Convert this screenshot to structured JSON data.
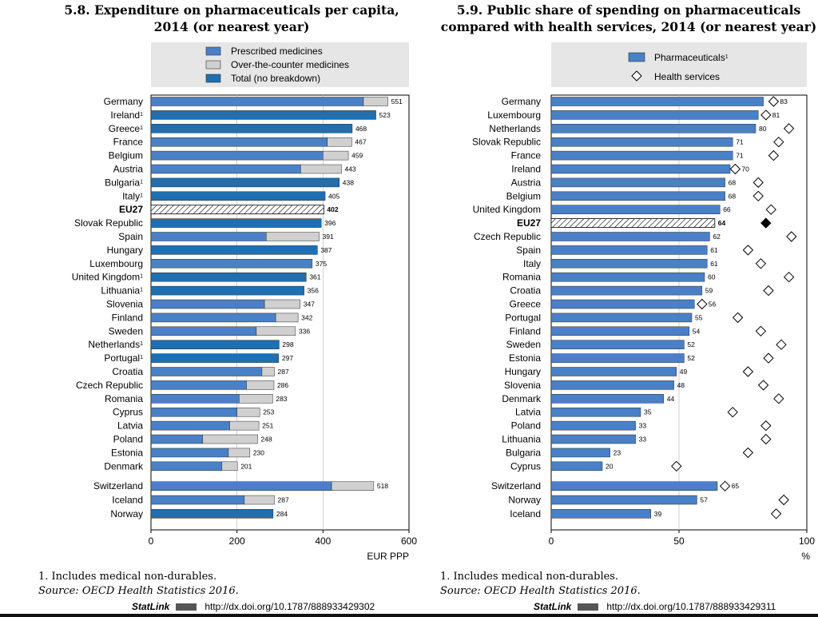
{
  "chart_data": [
    {
      "type": "bar",
      "title_number": "5.8.",
      "title": "Expenditure on pharmaceuticals per capita, 2014 (or nearest year)",
      "title_line1": "5.8.  Expenditure on pharmaceuticals per capita,",
      "title_line2": "2014 (or nearest year)",
      "xlabel": "EUR PPP",
      "xlim": [
        0,
        600
      ],
      "ticks": [
        "0",
        "200",
        "400",
        "600"
      ],
      "legend": [
        "Prescribed medicines",
        "Over-the-counter medicines",
        "Total (no breakdown)"
      ],
      "colors": {
        "prescribed": "#4a80c6",
        "otc": "#d0d0d0",
        "total": "#1f6fb1"
      },
      "rows": [
        {
          "label": "Germany",
          "sup": "",
          "prescribed": 494,
          "otc": 57,
          "total": 551,
          "kind": "split",
          "text": "551"
        },
        {
          "label": "Ireland",
          "sup": "1",
          "prescribed": 0,
          "otc": 0,
          "total": 523,
          "kind": "total",
          "text": "523"
        },
        {
          "label": "Greece",
          "sup": "1",
          "prescribed": 0,
          "otc": 0,
          "total": 468,
          "kind": "total",
          "text": "468"
        },
        {
          "label": "France",
          "sup": "",
          "prescribed": 410,
          "otc": 57,
          "total": 467,
          "kind": "split",
          "text": "467"
        },
        {
          "label": "Belgium",
          "sup": "",
          "prescribed": 400,
          "otc": 59,
          "total": 459,
          "kind": "split",
          "text": "459"
        },
        {
          "label": "Austria",
          "sup": "",
          "prescribed": 348,
          "otc": 95,
          "total": 443,
          "kind": "split",
          "text": "443"
        },
        {
          "label": "Bulgaria",
          "sup": "1",
          "prescribed": 0,
          "otc": 0,
          "total": 438,
          "kind": "total",
          "text": "438"
        },
        {
          "label": "Italy",
          "sup": "1",
          "prescribed": 0,
          "otc": 0,
          "total": 405,
          "kind": "total",
          "text": "405"
        },
        {
          "label": "EU27",
          "sup": "",
          "prescribed": 0,
          "otc": 0,
          "total": 402,
          "kind": "eu",
          "text": "402"
        },
        {
          "label": "Slovak Republic",
          "sup": "",
          "prescribed": 0,
          "otc": 0,
          "total": 396,
          "kind": "total",
          "text": "396"
        },
        {
          "label": "Spain",
          "sup": "",
          "prescribed": 268,
          "otc": 123,
          "total": 391,
          "kind": "split",
          "text": "391"
        },
        {
          "label": "Hungary",
          "sup": "",
          "prescribed": 0,
          "otc": 0,
          "total": 387,
          "kind": "total",
          "text": "387"
        },
        {
          "label": "Luxembourg",
          "sup": "",
          "prescribed": 375,
          "otc": 0,
          "total": 375,
          "kind": "split",
          "text": "375"
        },
        {
          "label": "United Kingdom",
          "sup": "1",
          "prescribed": 0,
          "otc": 0,
          "total": 361,
          "kind": "total",
          "text": "361"
        },
        {
          "label": "Lithuania",
          "sup": "1",
          "prescribed": 0,
          "otc": 0,
          "total": 356,
          "kind": "total",
          "text": "356"
        },
        {
          "label": "Slovenia",
          "sup": "",
          "prescribed": 264,
          "otc": 83,
          "total": 347,
          "kind": "split",
          "text": "347"
        },
        {
          "label": "Finland",
          "sup": "",
          "prescribed": 290,
          "otc": 52,
          "total": 342,
          "kind": "split",
          "text": "342"
        },
        {
          "label": "Sweden",
          "sup": "",
          "prescribed": 245,
          "otc": 91,
          "total": 336,
          "kind": "split",
          "text": "336"
        },
        {
          "label": "Netherlands",
          "sup": "1",
          "prescribed": 0,
          "otc": 0,
          "total": 298,
          "kind": "total",
          "text": "298"
        },
        {
          "label": "Portugal",
          "sup": "1",
          "prescribed": 0,
          "otc": 0,
          "total": 297,
          "kind": "total",
          "text": "297"
        },
        {
          "label": "Croatia",
          "sup": "",
          "prescribed": 258,
          "otc": 29,
          "total": 287,
          "kind": "split",
          "text": "287"
        },
        {
          "label": "Czech Republic",
          "sup": "",
          "prescribed": 222,
          "otc": 64,
          "total": 286,
          "kind": "split",
          "text": "286"
        },
        {
          "label": "Romania",
          "sup": "",
          "prescribed": 205,
          "otc": 78,
          "total": 283,
          "kind": "split",
          "text": "283"
        },
        {
          "label": "Cyprus",
          "sup": "",
          "prescribed": 200,
          "otc": 53,
          "total": 253,
          "kind": "split",
          "text": "253"
        },
        {
          "label": "Latvia",
          "sup": "",
          "prescribed": 183,
          "otc": 68,
          "total": 251,
          "kind": "split",
          "text": "251"
        },
        {
          "label": "Poland",
          "sup": "",
          "prescribed": 120,
          "otc": 128,
          "total": 248,
          "kind": "split",
          "text": "248"
        },
        {
          "label": "Estonia",
          "sup": "",
          "prescribed": 180,
          "otc": 50,
          "total": 230,
          "kind": "split",
          "text": "230"
        },
        {
          "label": "Denmark",
          "sup": "",
          "prescribed": 165,
          "otc": 36,
          "total": 201,
          "kind": "split",
          "text": "201"
        },
        {
          "label": "Switzerland",
          "sup": "",
          "prescribed": 420,
          "otc": 98,
          "total": 518,
          "kind": "split",
          "text": "518"
        },
        {
          "label": "Iceland",
          "sup": "",
          "prescribed": 217,
          "otc": 70,
          "total": 287,
          "kind": "split",
          "text": "287"
        },
        {
          "label": "Norway",
          "sup": "",
          "prescribed": 0,
          "otc": 0,
          "total": 284,
          "kind": "total",
          "text": "284"
        }
      ]
    },
    {
      "type": "bar",
      "title_number": "5.9.",
      "title": "Public share of spending on pharmaceuticals compared with health services, 2014 (or nearest year)",
      "title_line1": "5.9.  Public share of spending on pharmaceuticals",
      "title_line2": "compared with health services, 2014 (or nearest year)",
      "xlabel": "%",
      "xlim": [
        0,
        100
      ],
      "ticks": [
        "0",
        "50",
        "100"
      ],
      "legend": [
        "Pharmaceuticals",
        "Health services"
      ],
      "legend_sup": "1",
      "colors": {
        "pharma": "#4a80c6",
        "diamond": "#ffffff"
      },
      "rows": [
        {
          "label": "Germany",
          "value": 83,
          "health": 87,
          "kind": "bar",
          "text": "83"
        },
        {
          "label": "Luxembourg",
          "value": 81,
          "health": 84,
          "kind": "bar",
          "text": "81"
        },
        {
          "label": "Netherlands",
          "value": 80,
          "health": 93,
          "kind": "bar",
          "text": "80"
        },
        {
          "label": "Slovak Republic",
          "value": 71,
          "health": 89,
          "kind": "bar",
          "text": "71"
        },
        {
          "label": "France",
          "value": 71,
          "health": 87,
          "kind": "bar",
          "text": "71"
        },
        {
          "label": "Ireland",
          "value": 70,
          "health": 72,
          "kind": "bar",
          "text": "70"
        },
        {
          "label": "Austria",
          "value": 68,
          "health": 81,
          "kind": "bar",
          "text": "68"
        },
        {
          "label": "Belgium",
          "value": 68,
          "health": 81,
          "kind": "bar",
          "text": "68"
        },
        {
          "label": "United Kingdom",
          "value": 66,
          "health": 86,
          "kind": "bar",
          "text": "66"
        },
        {
          "label": "EU27",
          "value": 64,
          "health": 84,
          "kind": "eu",
          "text": "64"
        },
        {
          "label": "Czech Republic",
          "value": 62,
          "health": 94,
          "kind": "bar",
          "text": "62"
        },
        {
          "label": "Spain",
          "value": 61,
          "health": 77,
          "kind": "bar",
          "text": "61"
        },
        {
          "label": "Italy",
          "value": 61,
          "health": 82,
          "kind": "bar",
          "text": "61"
        },
        {
          "label": "Romania",
          "value": 60,
          "health": 93,
          "kind": "bar",
          "text": "60"
        },
        {
          "label": "Croatia",
          "value": 59,
          "health": 85,
          "kind": "bar",
          "text": "59"
        },
        {
          "label": "Greece",
          "value": 56,
          "health": 59,
          "kind": "bar",
          "text": "56"
        },
        {
          "label": "Portugal",
          "value": 55,
          "health": 73,
          "kind": "bar",
          "text": "55"
        },
        {
          "label": "Finland",
          "value": 54,
          "health": 82,
          "kind": "bar",
          "text": "54"
        },
        {
          "label": "Sweden",
          "value": 52,
          "health": 90,
          "kind": "bar",
          "text": "52"
        },
        {
          "label": "Estonia",
          "value": 52,
          "health": 85,
          "kind": "bar",
          "text": "52"
        },
        {
          "label": "Hungary",
          "value": 49,
          "health": 77,
          "kind": "bar",
          "text": "49"
        },
        {
          "label": "Slovenia",
          "value": 48,
          "health": 83,
          "kind": "bar",
          "text": "48"
        },
        {
          "label": "Denmark",
          "value": 44,
          "health": 89,
          "kind": "bar",
          "text": "44"
        },
        {
          "label": "Latvia",
          "value": 35,
          "health": 71,
          "kind": "bar",
          "text": "35"
        },
        {
          "label": "Poland",
          "value": 33,
          "health": 84,
          "kind": "bar",
          "text": "33"
        },
        {
          "label": "Lithuania",
          "value": 33,
          "health": 84,
          "kind": "bar",
          "text": "33"
        },
        {
          "label": "Bulgaria",
          "value": 23,
          "health": 77,
          "kind": "bar",
          "text": "23"
        },
        {
          "label": "Cyprus",
          "value": 20,
          "health": 49,
          "kind": "bar",
          "text": "20"
        },
        {
          "label": "Switzerland",
          "value": 65,
          "health": 68,
          "kind": "bar",
          "text": "65"
        },
        {
          "label": "Norway",
          "value": 57,
          "health": 91,
          "kind": "bar",
          "text": "57"
        },
        {
          "label": "Iceland",
          "value": 39,
          "health": 88,
          "kind": "bar",
          "text": "39"
        }
      ]
    }
  ],
  "footnotes": {
    "left": {
      "note": "1.  Includes medical non-durables.",
      "source_label": "Source:",
      "source_text": "  OECD Health Statistics 2016.",
      "statlink_label": "StatLink",
      "url": "http://dx.doi.org/10.1787/888933429302"
    },
    "right": {
      "note": "1.  Includes medical non-durables.",
      "source_label": "Source:",
      "source_text": "  OECD Health Statistics 2016.",
      "statlink_label": "StatLink",
      "url": "http://dx.doi.org/10.1787/888933429311"
    }
  }
}
